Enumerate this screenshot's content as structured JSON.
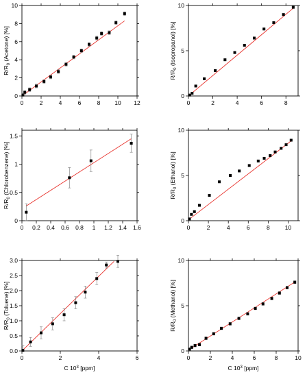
{
  "figure": {
    "x_axis_label": "C 10",
    "x_axis_sup": "3",
    "x_axis_unit": " [ppm]"
  },
  "chart_data": [
    {
      "type": "scatter",
      "panel": "acetone",
      "ylabel_main": "R/R",
      "ylabel_sub": "0",
      "ylabel_rest": " (Acetone) [%]",
      "xlabel": "",
      "xlim": [
        0,
        12
      ],
      "ylim": [
        0,
        10
      ],
      "xticks": [
        0,
        2,
        4,
        6,
        8,
        10,
        12
      ],
      "yticks": [
        0,
        2,
        4,
        6,
        8,
        10
      ],
      "series": [
        {
          "x": [
            0.1,
            0.3,
            0.8,
            1.5,
            2.3,
            3.0,
            3.8,
            4.6,
            5.4,
            6.2,
            7.0,
            7.8,
            8.3,
            9.1,
            9.8,
            10.7
          ],
          "y": [
            0.1,
            0.4,
            0.7,
            1.1,
            1.6,
            2.1,
            2.7,
            3.5,
            4.3,
            5.0,
            5.7,
            6.4,
            6.9,
            7.0,
            8.1,
            9.1
          ],
          "err": [
            0.2,
            0.2,
            0.2,
            0.2,
            0.2,
            0.2,
            0.2,
            0.2,
            0.2,
            0.2,
            0.2,
            0.2,
            0.2,
            0.2,
            0.2,
            0.2
          ]
        }
      ],
      "fit": {
        "x": [
          0,
          10.7
        ],
        "y": [
          0,
          8.3
        ]
      },
      "grid": false
    },
    {
      "type": "scatter",
      "panel": "isopropanol",
      "ylabel_main": "R/R",
      "ylabel_sub": "0",
      "ylabel_rest": " (Isopropanol) [%]",
      "xlabel": "",
      "xlim": [
        0,
        9
      ],
      "ylim": [
        0,
        10
      ],
      "xticks": [
        0,
        2,
        4,
        6,
        8
      ],
      "yticks": [
        0,
        5,
        10
      ],
      "series": [
        {
          "x": [
            0.1,
            0.3,
            0.6,
            1.3,
            2.2,
            3.0,
            3.8,
            4.6,
            5.4,
            6.2,
            7.0,
            7.8,
            8.6
          ],
          "y": [
            0.1,
            0.3,
            1.1,
            1.9,
            2.8,
            4.0,
            4.8,
            5.6,
            6.4,
            7.4,
            8.1,
            9.0,
            9.8
          ],
          "err": [
            0.1,
            0.1,
            0.1,
            0.1,
            0.1,
            0.1,
            0.1,
            0.1,
            0.1,
            0.1,
            0.1,
            0.1,
            0.1
          ]
        }
      ],
      "fit": {
        "x": [
          0,
          8.6
        ],
        "y": [
          0,
          9.7
        ]
      },
      "grid": false
    },
    {
      "type": "scatter",
      "panel": "chlorobenzene",
      "ylabel_main": "R/R",
      "ylabel_sub": "0",
      "ylabel_rest": " (Chlorobenzene) [%]",
      "xlabel": "",
      "xlim": [
        0,
        1.6
      ],
      "ylim": [
        0,
        1.6
      ],
      "xticks": [
        0,
        0.2,
        0.4,
        0.6,
        0.8,
        1,
        1.2,
        1.4,
        1.6
      ],
      "yticks": [
        0,
        0.5,
        1,
        1.5
      ],
      "series": [
        {
          "x": [
            0.06,
            0.66,
            0.96,
            1.52
          ],
          "y": [
            0.15,
            0.76,
            1.06,
            1.37
          ],
          "err": [
            0.15,
            0.18,
            0.19,
            0.16
          ]
        }
      ],
      "fit": {
        "x": [
          0.06,
          1.52
        ],
        "y": [
          0.26,
          1.45
        ]
      },
      "grid": false
    },
    {
      "type": "scatter",
      "panel": "ethanol",
      "ylabel_main": "R/R",
      "ylabel_sub": "0",
      "ylabel_rest": " (Ethanol) [%]",
      "xlabel": "",
      "xlim": [
        0,
        11
      ],
      "ylim": [
        0,
        10
      ],
      "xticks": [
        0,
        2,
        4,
        6,
        8,
        10
      ],
      "yticks": [
        0,
        5,
        10
      ],
      "series": [
        {
          "x": [
            0.1,
            0.3,
            0.6,
            1.1,
            2.1,
            3.1,
            4.2,
            5.1,
            6.1,
            7.0,
            7.6,
            8.2,
            8.7,
            9.3,
            9.8,
            10.3
          ],
          "y": [
            0.2,
            0.7,
            1.0,
            1.7,
            2.8,
            4.3,
            5.0,
            5.5,
            6.1,
            6.6,
            6.9,
            7.2,
            7.6,
            8.0,
            8.4,
            8.9
          ],
          "err": [
            0.1,
            0.1,
            0.1,
            0.1,
            0.1,
            0.1,
            0.1,
            0.1,
            0.1,
            0.1,
            0.1,
            0.1,
            0.1,
            0.1,
            0.1,
            0.1
          ]
        }
      ],
      "fit": {
        "x": [
          0,
          10.4
        ],
        "y": [
          0.1,
          8.9
        ]
      },
      "grid": false
    },
    {
      "type": "scatter",
      "panel": "toluene",
      "ylabel_main": "R/R",
      "ylabel_sub": "0",
      "ylabel_rest": " (Toluene) [%]",
      "xlabel": "C 10^3 [ppm]",
      "xlim": [
        0,
        6
      ],
      "ylim": [
        0,
        3.0
      ],
      "xticks": [
        0,
        2,
        4,
        6
      ],
      "yticks": [
        0,
        0.5,
        1.0,
        1.5,
        2.0,
        2.5,
        3.0
      ],
      "series": [
        {
          "x": [
            0.05,
            0.45,
            1.0,
            1.6,
            2.2,
            2.8,
            3.3,
            3.9,
            4.4,
            5.0
          ],
          "y": [
            0.02,
            0.3,
            0.6,
            0.9,
            1.2,
            1.6,
            1.95,
            2.4,
            2.85,
            2.97
          ],
          "err": [
            0.15,
            0.15,
            0.2,
            0.2,
            0.2,
            0.2,
            0.2,
            0.2,
            0.1,
            0.2
          ]
        }
      ],
      "fit": {
        "x": [
          0,
          4.8
        ],
        "y": [
          0,
          2.97
        ]
      },
      "grid": false
    },
    {
      "type": "scatter",
      "panel": "methanol",
      "ylabel_main": "R/R",
      "ylabel_sub": "0",
      "ylabel_rest": " (Methanol) [%]",
      "xlabel": "C 10^3 [ppm]",
      "xlim": [
        0,
        10
      ],
      "ylim": [
        0,
        10
      ],
      "xticks": [
        0,
        2,
        4,
        6,
        8,
        10
      ],
      "yticks": [
        0,
        5,
        10
      ],
      "series": [
        {
          "x": [
            0.1,
            0.3,
            0.6,
            1.0,
            1.6,
            2.3,
            3.0,
            3.8,
            4.6,
            5.4,
            6.1,
            6.8,
            7.6,
            8.3,
            9.0,
            9.7
          ],
          "y": [
            0.2,
            0.4,
            0.6,
            0.7,
            1.4,
            1.9,
            2.5,
            3.0,
            3.6,
            4.1,
            4.7,
            5.2,
            5.8,
            6.4,
            7.0,
            7.6
          ],
          "err": [
            0.15,
            0.15,
            0.15,
            0.15,
            0.15,
            0.15,
            0.15,
            0.15,
            0.15,
            0.15,
            0.15,
            0.15,
            0.15,
            0.15,
            0.15,
            0.15
          ]
        }
      ],
      "fit": {
        "x": [
          0,
          9.8
        ],
        "y": [
          0.1,
          7.7
        ]
      },
      "grid": false
    }
  ]
}
